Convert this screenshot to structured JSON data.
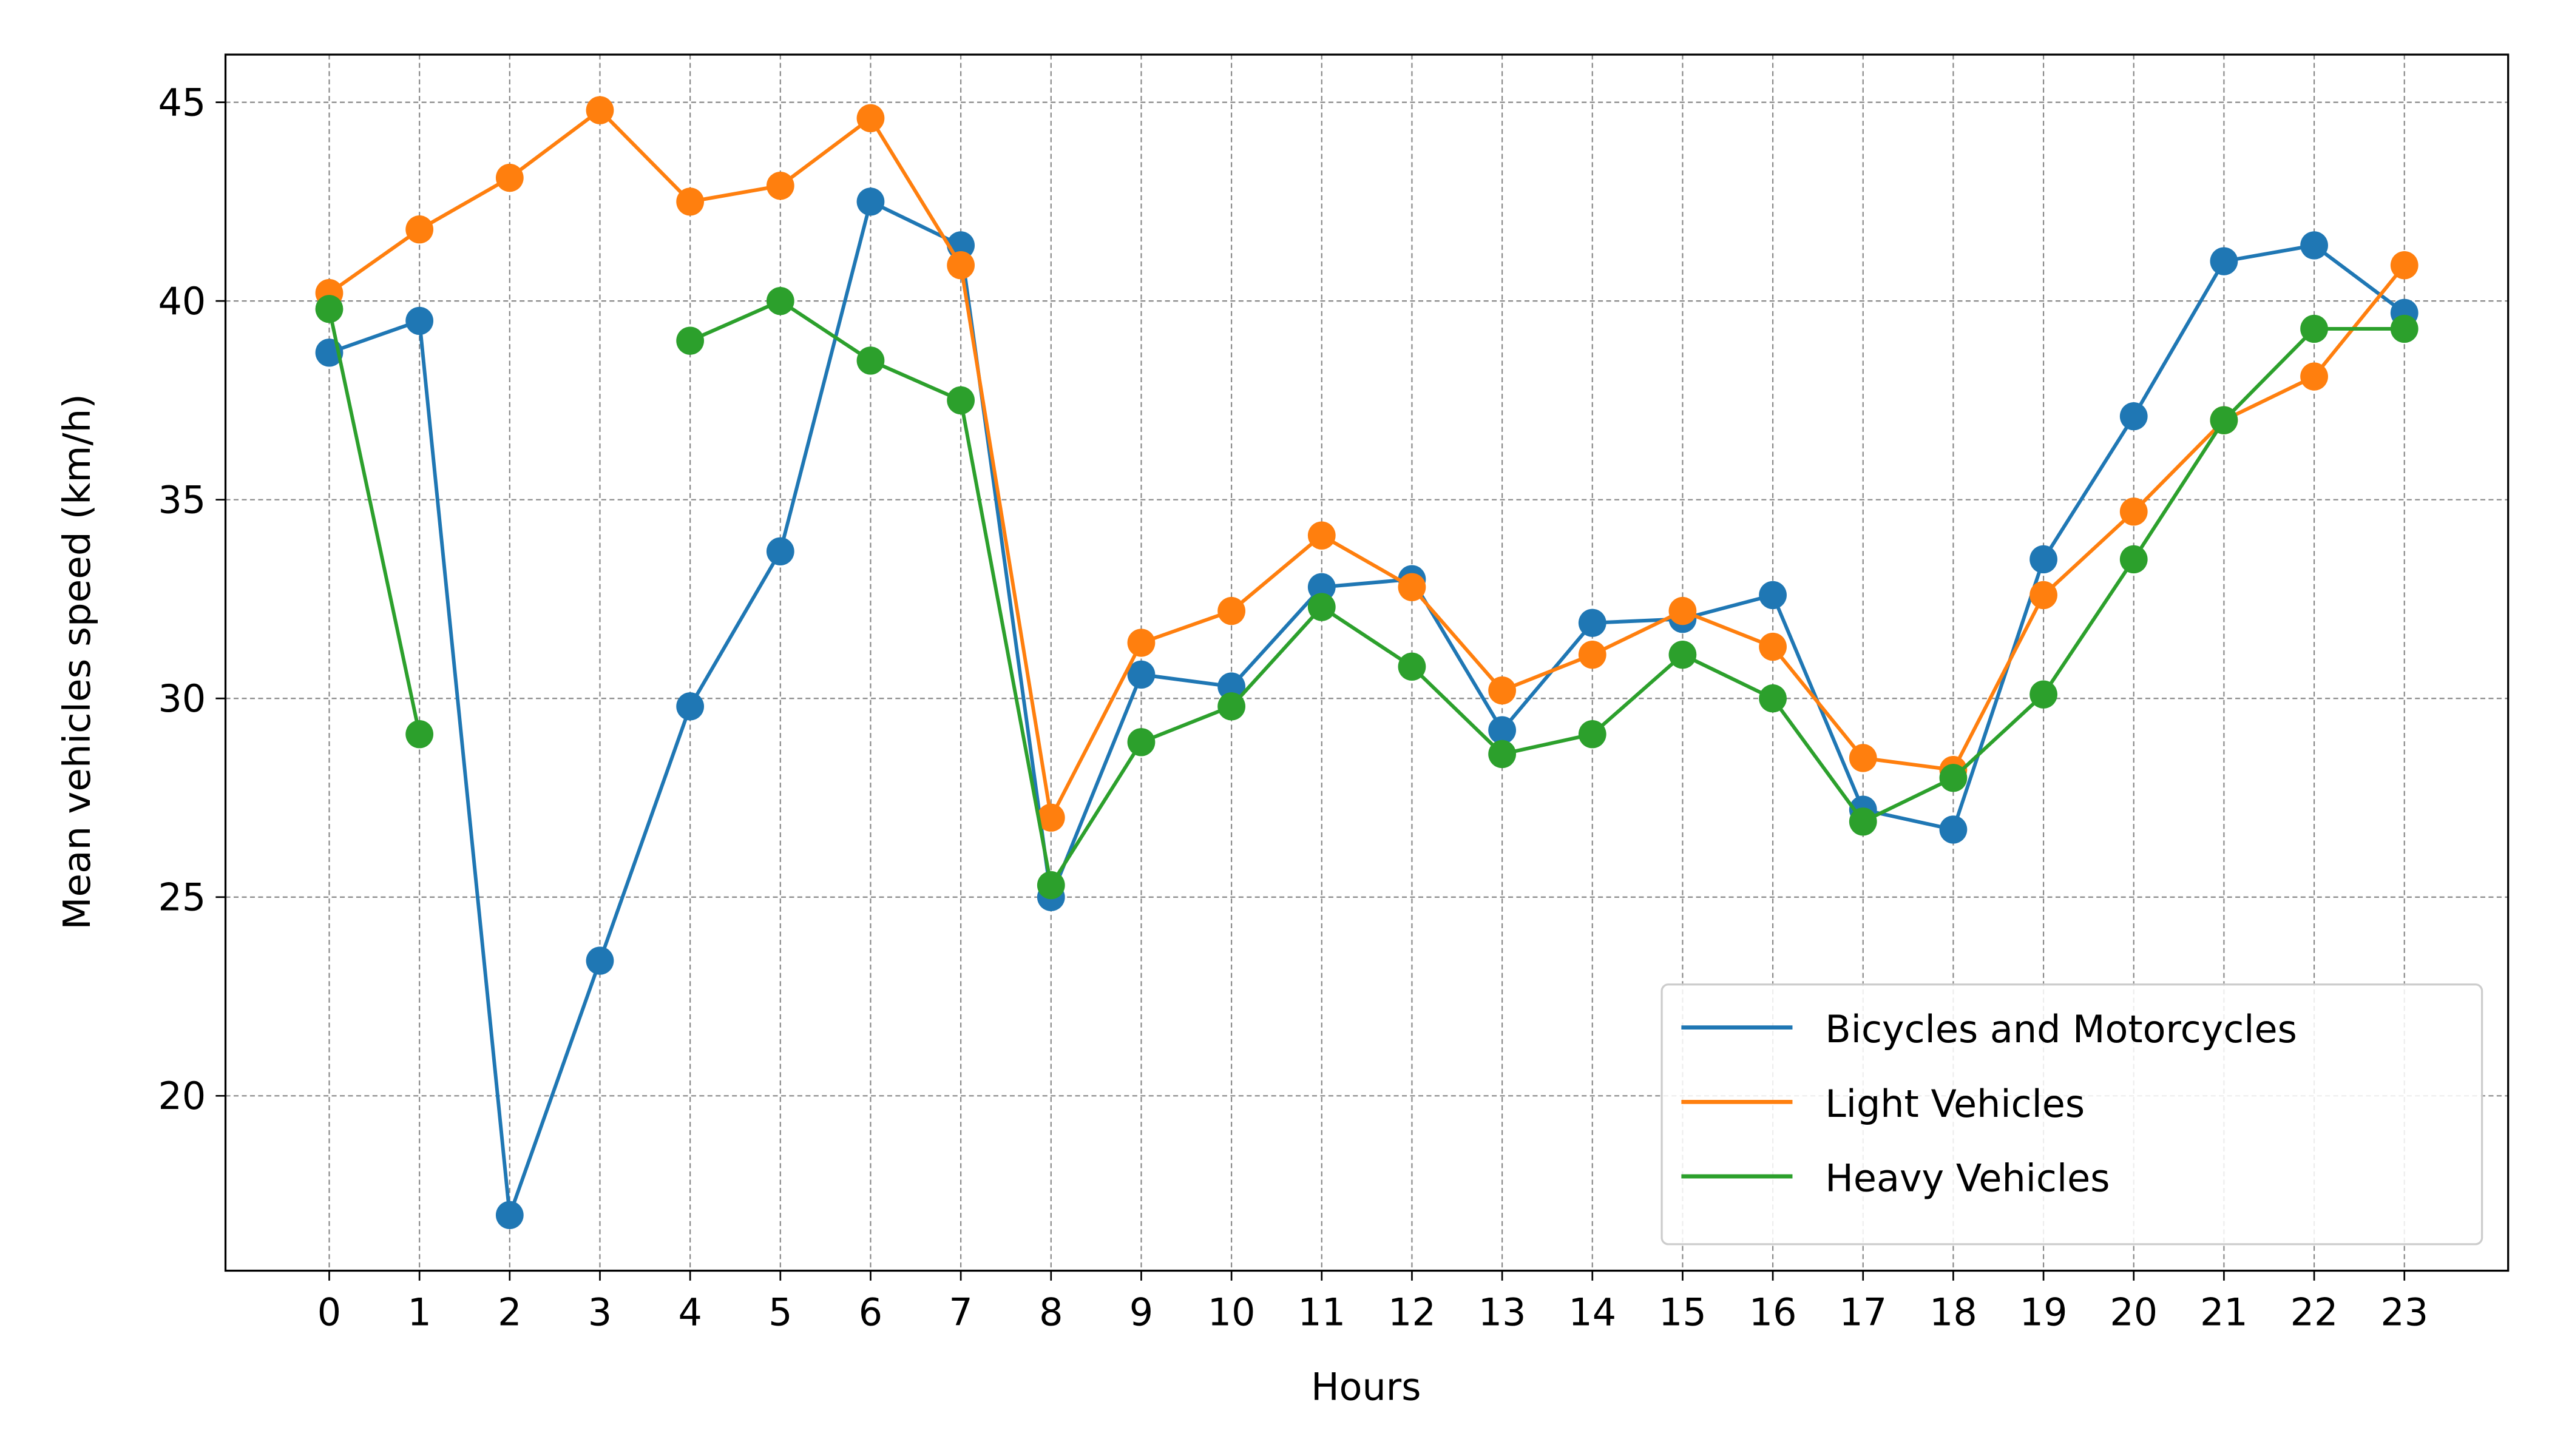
{
  "chart_data": {
    "type": "line",
    "x_label": "Hours",
    "y_label": "Mean vehicles speed (km/h)",
    "x": [
      0,
      1,
      2,
      3,
      4,
      5,
      6,
      7,
      8,
      9,
      10,
      11,
      12,
      13,
      14,
      15,
      16,
      17,
      18,
      19,
      20,
      21,
      22,
      23
    ],
    "series": [
      {
        "name": "Bicycles and Motorcycles",
        "color": "#1f77b4",
        "values": [
          38.7,
          39.5,
          17.0,
          23.4,
          29.8,
          33.7,
          42.5,
          41.4,
          25.0,
          30.6,
          30.3,
          32.8,
          33.0,
          29.2,
          31.9,
          32.0,
          32.6,
          27.2,
          26.7,
          33.5,
          37.1,
          41.0,
          41.4,
          39.7
        ]
      },
      {
        "name": "Light Vehicles",
        "color": "#ff7f0e",
        "values": [
          40.2,
          41.8,
          43.1,
          44.8,
          42.5,
          42.9,
          44.6,
          40.9,
          27.0,
          31.4,
          32.2,
          34.1,
          32.8,
          30.2,
          31.1,
          32.2,
          31.3,
          28.5,
          28.2,
          32.6,
          34.7,
          37.0,
          38.1,
          40.9
        ]
      },
      {
        "name": "Heavy Vehicles",
        "color": "#2ca02c",
        "values": [
          39.8,
          29.1,
          null,
          null,
          39.0,
          40.0,
          38.5,
          37.5,
          25.3,
          28.9,
          29.8,
          32.3,
          30.8,
          28.6,
          29.1,
          31.1,
          30.0,
          26.9,
          28.0,
          30.1,
          33.5,
          37.0,
          39.3,
          39.3
        ]
      }
    ],
    "xlim": [
      -1.15,
      24.15
    ],
    "ylim": [
      15.6,
      46.2
    ],
    "xticks": [
      0,
      1,
      2,
      3,
      4,
      5,
      6,
      7,
      8,
      9,
      10,
      11,
      12,
      13,
      14,
      15,
      16,
      17,
      18,
      19,
      20,
      21,
      22,
      23
    ],
    "yticks": [
      20,
      25,
      30,
      35,
      40,
      45
    ],
    "grid": true,
    "legend": "lower right"
  }
}
